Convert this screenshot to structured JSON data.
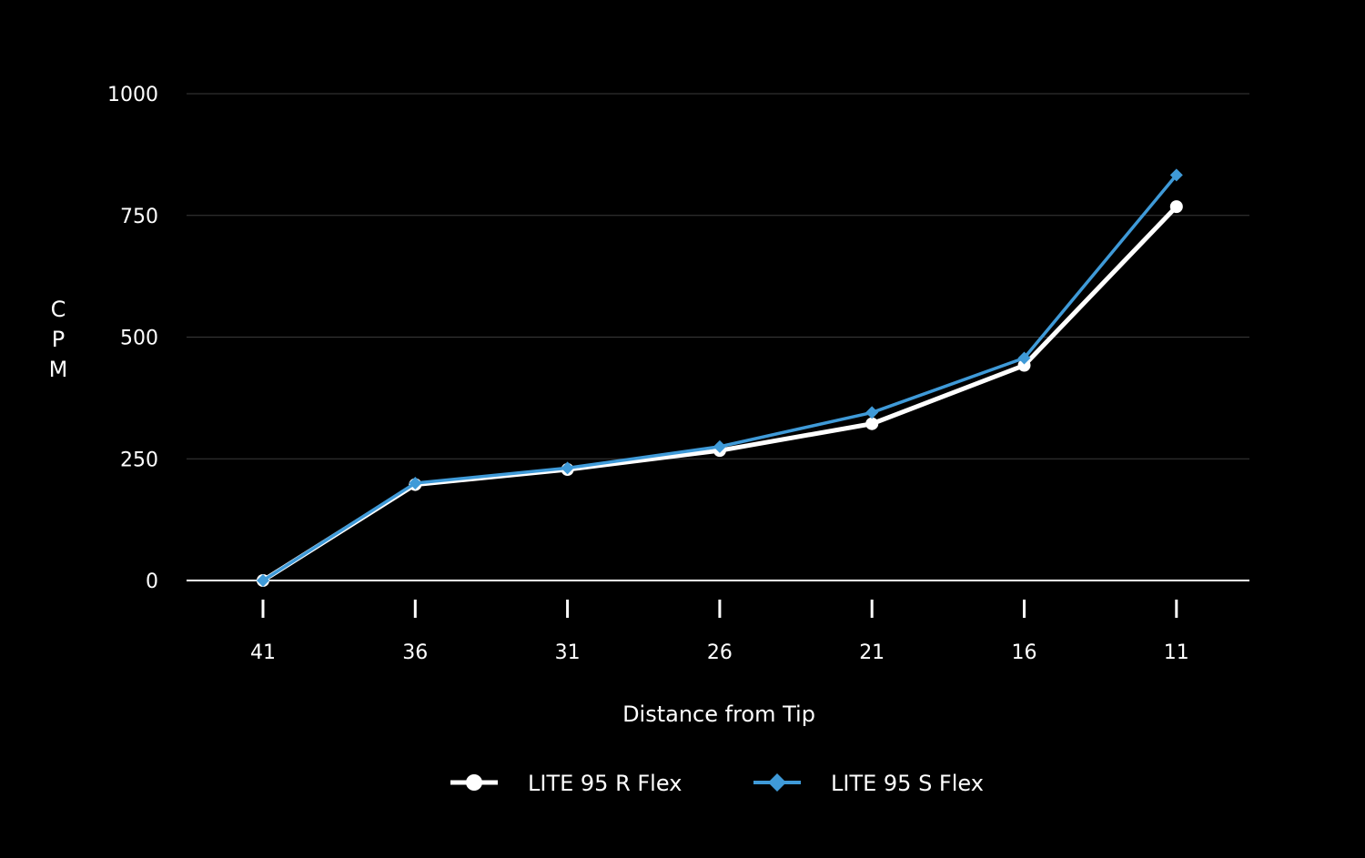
{
  "chart_data": {
    "type": "line",
    "title": "",
    "xlabel": "Distance from Tip",
    "ylabel": "CPM",
    "categories": [
      "41",
      "36",
      "31",
      "26",
      "21",
      "16",
      "11"
    ],
    "ylim": [
      0,
      1000
    ],
    "yticks": [
      0,
      250,
      500,
      750,
      1000
    ],
    "grid": true,
    "legend_position": "bottom",
    "series": [
      {
        "name": "LITE 95 R Flex",
        "color": "#ffffff",
        "marker": "circle",
        "values": [
          0,
          197,
          228,
          267,
          322,
          442,
          768
        ]
      },
      {
        "name": "LITE 95 S Flex",
        "color": "#3f9ad8",
        "marker": "diamond",
        "values": [
          0,
          200,
          231,
          275,
          345,
          457,
          833
        ]
      }
    ]
  }
}
